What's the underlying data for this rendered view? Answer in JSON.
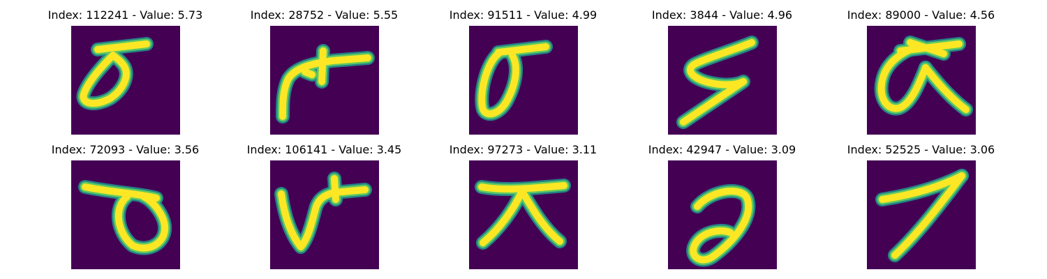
{
  "colors": {
    "background": "#440154",
    "stroke_core": "#fde725",
    "stroke_mid": "#5ec962",
    "stroke_edge": "#21918c"
  },
  "panels": [
    {
      "title": "Index: 112241 - Value: 5.73",
      "glyph": "sigma-loop-right"
    },
    {
      "title": "Index: 28752 - Value: 5.55",
      "glyph": "hook-cross"
    },
    {
      "title": "Index: 91511 - Value: 4.99",
      "glyph": "sigma-loop-tall"
    },
    {
      "title": "Index: 3844 - Value: 4.96",
      "glyph": "s-zigzag"
    },
    {
      "title": "Index: 89000 - Value: 4.56",
      "glyph": "loop-with-leg"
    },
    {
      "title": "Index: 72093 - Value: 3.56",
      "glyph": "bar-with-loop"
    },
    {
      "title": "Index: 106141 - Value: 3.45",
      "glyph": "v-with-cross"
    },
    {
      "title": "Index: 97273 - Value: 3.11",
      "glyph": "tau-legs"
    },
    {
      "title": "Index: 42947 - Value: 3.09",
      "glyph": "hook-curl"
    },
    {
      "title": "Index: 52525 - Value: 3.06",
      "glyph": "seven-diagonal"
    }
  ]
}
